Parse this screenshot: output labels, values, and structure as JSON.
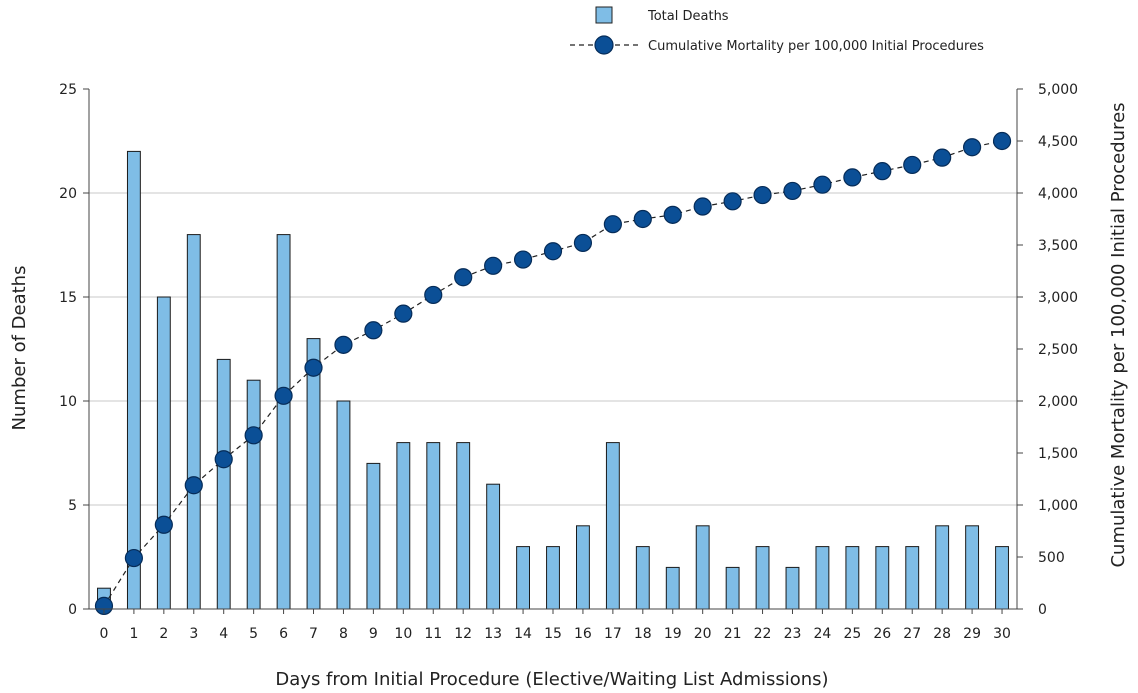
{
  "chart_data": {
    "type": "bar",
    "x": [
      0,
      1,
      2,
      3,
      4,
      5,
      6,
      7,
      8,
      9,
      10,
      11,
      12,
      13,
      14,
      15,
      16,
      17,
      18,
      19,
      20,
      21,
      22,
      23,
      24,
      25,
      26,
      27,
      28,
      29,
      30
    ],
    "xlabel": "Days from Initial Procedure (Elective/Waiting List Admissions)",
    "ylabel": "Number of Deaths",
    "y2label": "Cumulative Mortality per 100,000 Initial Procedures",
    "ylim": [
      0,
      25
    ],
    "y2lim": [
      0,
      5000
    ],
    "yticks": [
      "0",
      "5",
      "10",
      "15",
      "20",
      "25"
    ],
    "y2ticks": [
      "0",
      "500",
      "1,000",
      "1,500",
      "2,000",
      "2,500",
      "3,000",
      "3,500",
      "4,000",
      "4,500",
      "5,000"
    ],
    "grid": true,
    "legend_placement": "top-right",
    "series": [
      {
        "name": "Total Deaths",
        "kind": "bar",
        "axis": "left",
        "color": "#7fbde6",
        "values": [
          1,
          22,
          15,
          18,
          12,
          11,
          18,
          13,
          10,
          7,
          8,
          8,
          8,
          6,
          3,
          3,
          4,
          8,
          3,
          2,
          4,
          2,
          3,
          2,
          3,
          3,
          3,
          3,
          4,
          4,
          3
        ]
      },
      {
        "name": "Cumulative Mortality per 100,000 Initial Procedures",
        "kind": "line",
        "axis": "right",
        "color": "#0b4f96",
        "values": [
          30,
          490,
          810,
          1190,
          1440,
          1670,
          2050,
          2320,
          2540,
          2680,
          2840,
          3020,
          3190,
          3300,
          3360,
          3440,
          3520,
          3700,
          3750,
          3790,
          3870,
          3920,
          3980,
          4020,
          4080,
          4150,
          4210,
          4270,
          4340,
          4440,
          4500
        ]
      }
    ]
  }
}
